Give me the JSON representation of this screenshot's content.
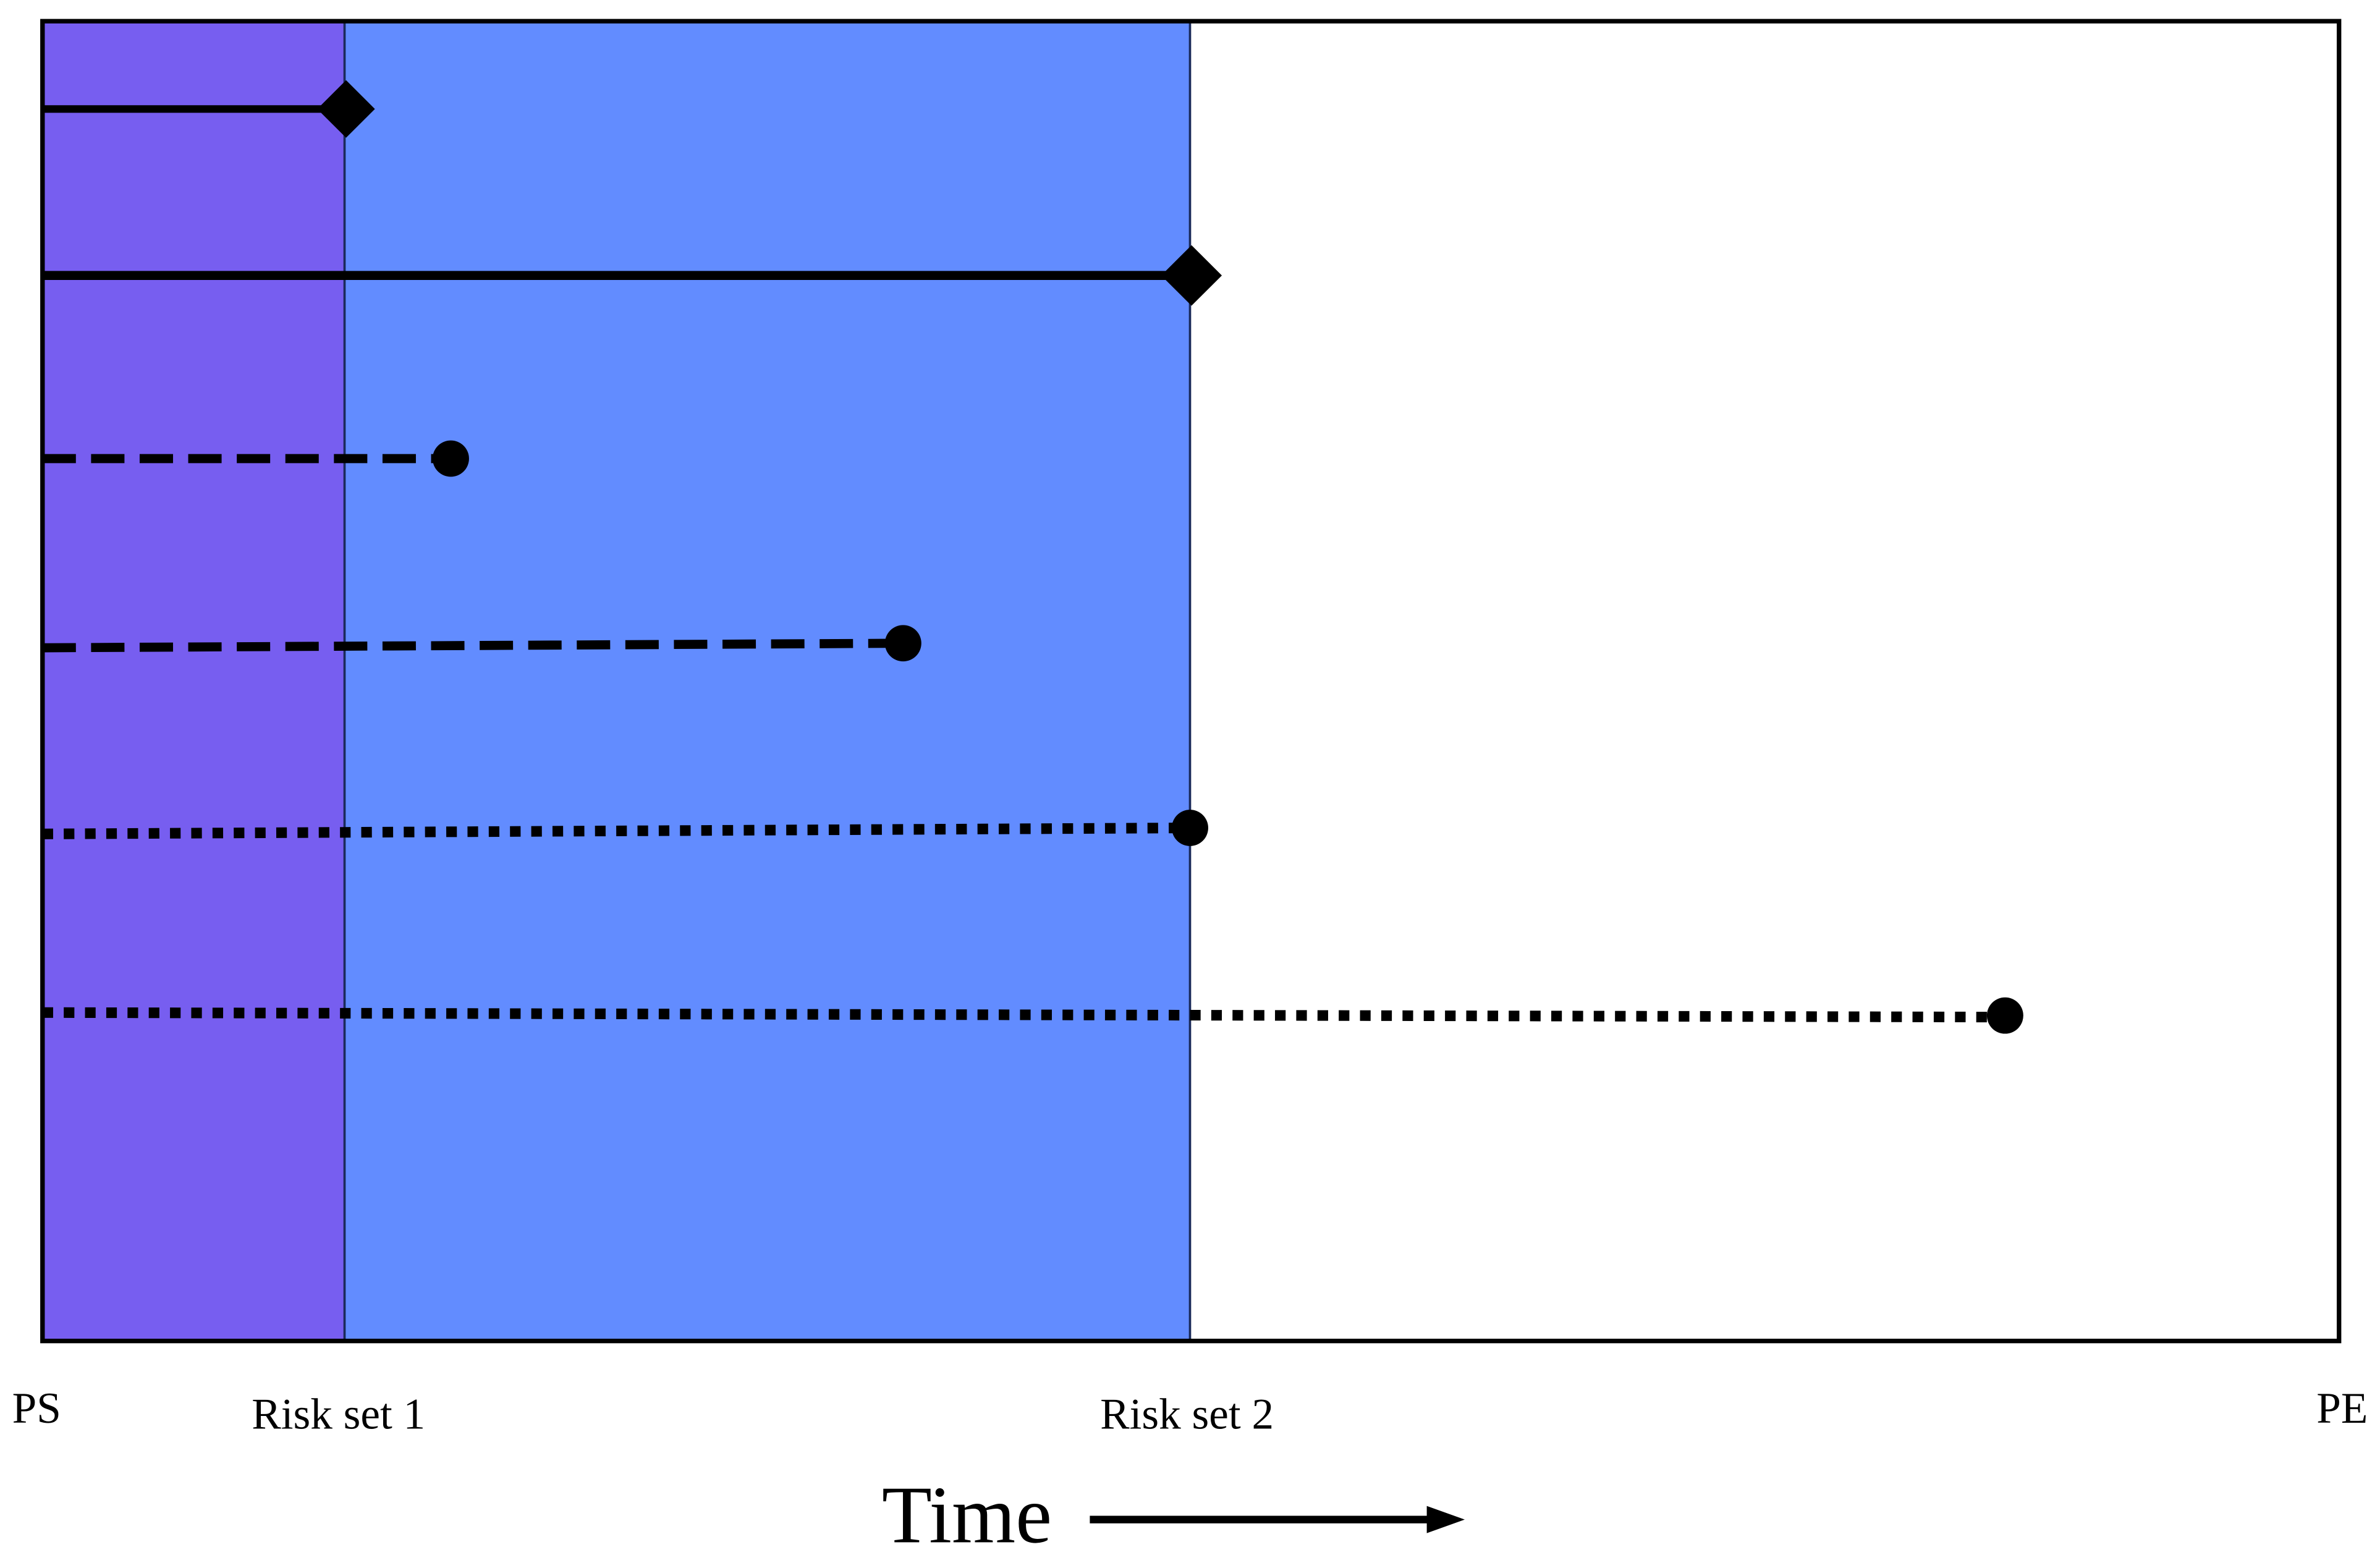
{
  "axis_labels": {
    "start": "PS",
    "risk_set_1": "Risk set 1",
    "risk_set_2": "Risk set 2",
    "end": "PE"
  },
  "time_label": "Time"
}
